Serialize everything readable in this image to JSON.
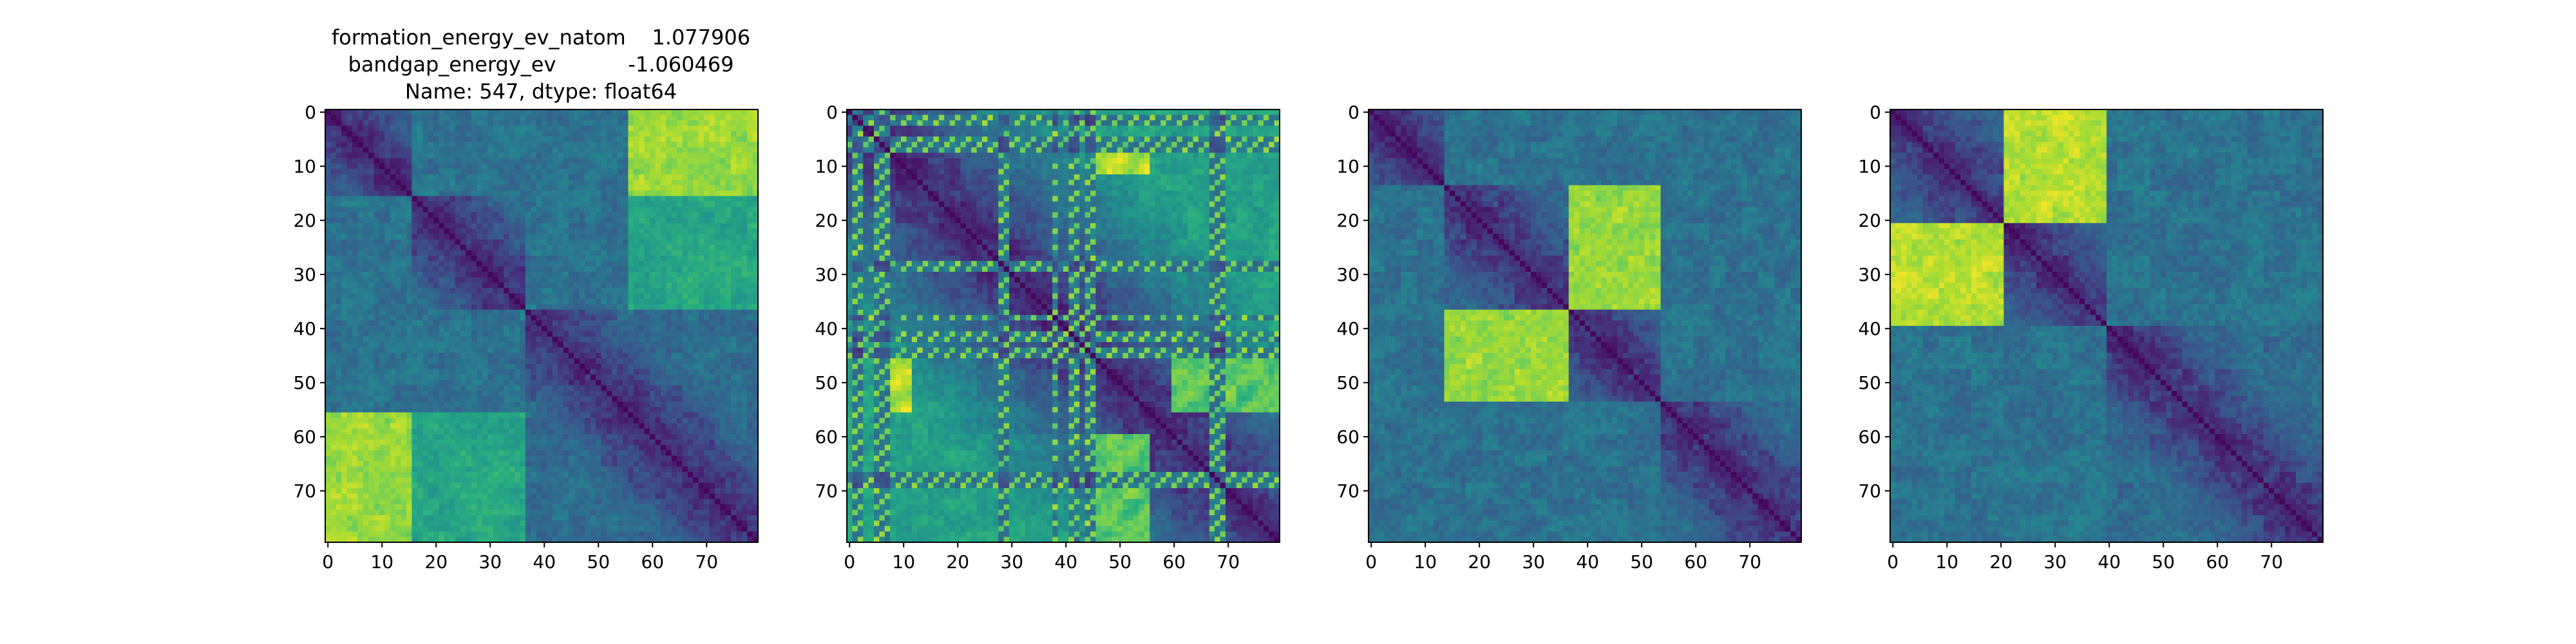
{
  "figure": {
    "title_lines": [
      "formation_energy_ev_natom    1.077906",
      "bandgap_energy_ev           -1.060469",
      "Name: 547, dtype: float64"
    ]
  },
  "chart_data": [
    {
      "type": "heatmap",
      "title": "",
      "matrix_size": 80,
      "colormap": "viridis",
      "x_ticks": [
        0,
        10,
        20,
        30,
        40,
        50,
        60,
        70
      ],
      "y_ticks": [
        0,
        10,
        20,
        30,
        40,
        50,
        60,
        70
      ],
      "xlim": [
        0,
        79
      ],
      "ylim": [
        79,
        0
      ],
      "grid": false,
      "diagonal": "dark (minimum)",
      "blocks": [
        {
          "start": 0,
          "end": 16
        },
        {
          "start": 16,
          "end": 37
        },
        {
          "start": 37,
          "end": 80
        }
      ],
      "bright_regions": [
        {
          "rows": [
            0,
            16
          ],
          "cols": [
            56,
            80
          ],
          "level": 0.85
        },
        {
          "rows": [
            56,
            80
          ],
          "cols": [
            0,
            16
          ],
          "level": 0.85
        },
        {
          "rows": [
            16,
            37
          ],
          "cols": [
            56,
            80
          ],
          "level": 0.6
        },
        {
          "rows": [
            56,
            80
          ],
          "cols": [
            16,
            37
          ],
          "level": 0.6
        }
      ]
    },
    {
      "type": "heatmap",
      "title": "",
      "matrix_size": 80,
      "colormap": "viridis",
      "x_ticks": [
        0,
        10,
        20,
        30,
        40,
        50,
        60,
        70
      ],
      "y_ticks": [
        0,
        10,
        20,
        30,
        40,
        50,
        60,
        70
      ],
      "xlim": [
        0,
        79
      ],
      "ylim": [
        79,
        0
      ],
      "grid": false,
      "diagonal": "dark (minimum)",
      "stripe_indices": [
        1,
        2,
        5,
        6,
        7,
        28,
        29,
        38,
        41,
        42,
        44,
        45,
        67,
        68,
        69
      ],
      "bright_regions": [
        {
          "rows": [
            7,
            12
          ],
          "cols": [
            46,
            56
          ],
          "level": 0.95
        },
        {
          "rows": [
            46,
            56
          ],
          "cols": [
            7,
            12
          ],
          "level": 0.95
        },
        {
          "rows": [
            60,
            80
          ],
          "cols": [
            46,
            56
          ],
          "level": 0.8
        },
        {
          "rows": [
            46,
            56
          ],
          "cols": [
            60,
            80
          ],
          "level": 0.8
        }
      ]
    },
    {
      "type": "heatmap",
      "title": "",
      "matrix_size": 80,
      "colormap": "viridis",
      "x_ticks": [
        0,
        10,
        20,
        30,
        40,
        50,
        60,
        70
      ],
      "y_ticks": [
        0,
        10,
        20,
        30,
        40,
        50,
        60,
        70
      ],
      "xlim": [
        0,
        79
      ],
      "ylim": [
        79,
        0
      ],
      "grid": false,
      "diagonal": "dark (minimum)",
      "blocks": [
        {
          "start": 0,
          "end": 14
        },
        {
          "start": 14,
          "end": 37
        },
        {
          "start": 37,
          "end": 54
        },
        {
          "start": 54,
          "end": 80
        }
      ],
      "bright_regions": [
        {
          "rows": [
            37,
            54
          ],
          "cols": [
            14,
            37
          ],
          "level": 0.85
        },
        {
          "rows": [
            14,
            37
          ],
          "cols": [
            37,
            54
          ],
          "level": 0.85
        }
      ]
    },
    {
      "type": "heatmap",
      "title": "",
      "matrix_size": 80,
      "colormap": "viridis",
      "x_ticks": [
        0,
        10,
        20,
        30,
        40,
        50,
        60,
        70
      ],
      "y_ticks": [
        0,
        10,
        20,
        30,
        40,
        50,
        60,
        70
      ],
      "xlim": [
        0,
        79
      ],
      "ylim": [
        79,
        0
      ],
      "grid": false,
      "diagonal": "dark (minimum)",
      "blocks": [
        {
          "start": 0,
          "end": 21
        },
        {
          "start": 21,
          "end": 40
        },
        {
          "start": 40,
          "end": 80
        }
      ],
      "bright_regions": [
        {
          "rows": [
            21,
            40
          ],
          "cols": [
            0,
            21
          ],
          "level": 0.9
        },
        {
          "rows": [
            0,
            21
          ],
          "cols": [
            21,
            40
          ],
          "level": 0.9
        }
      ]
    }
  ]
}
